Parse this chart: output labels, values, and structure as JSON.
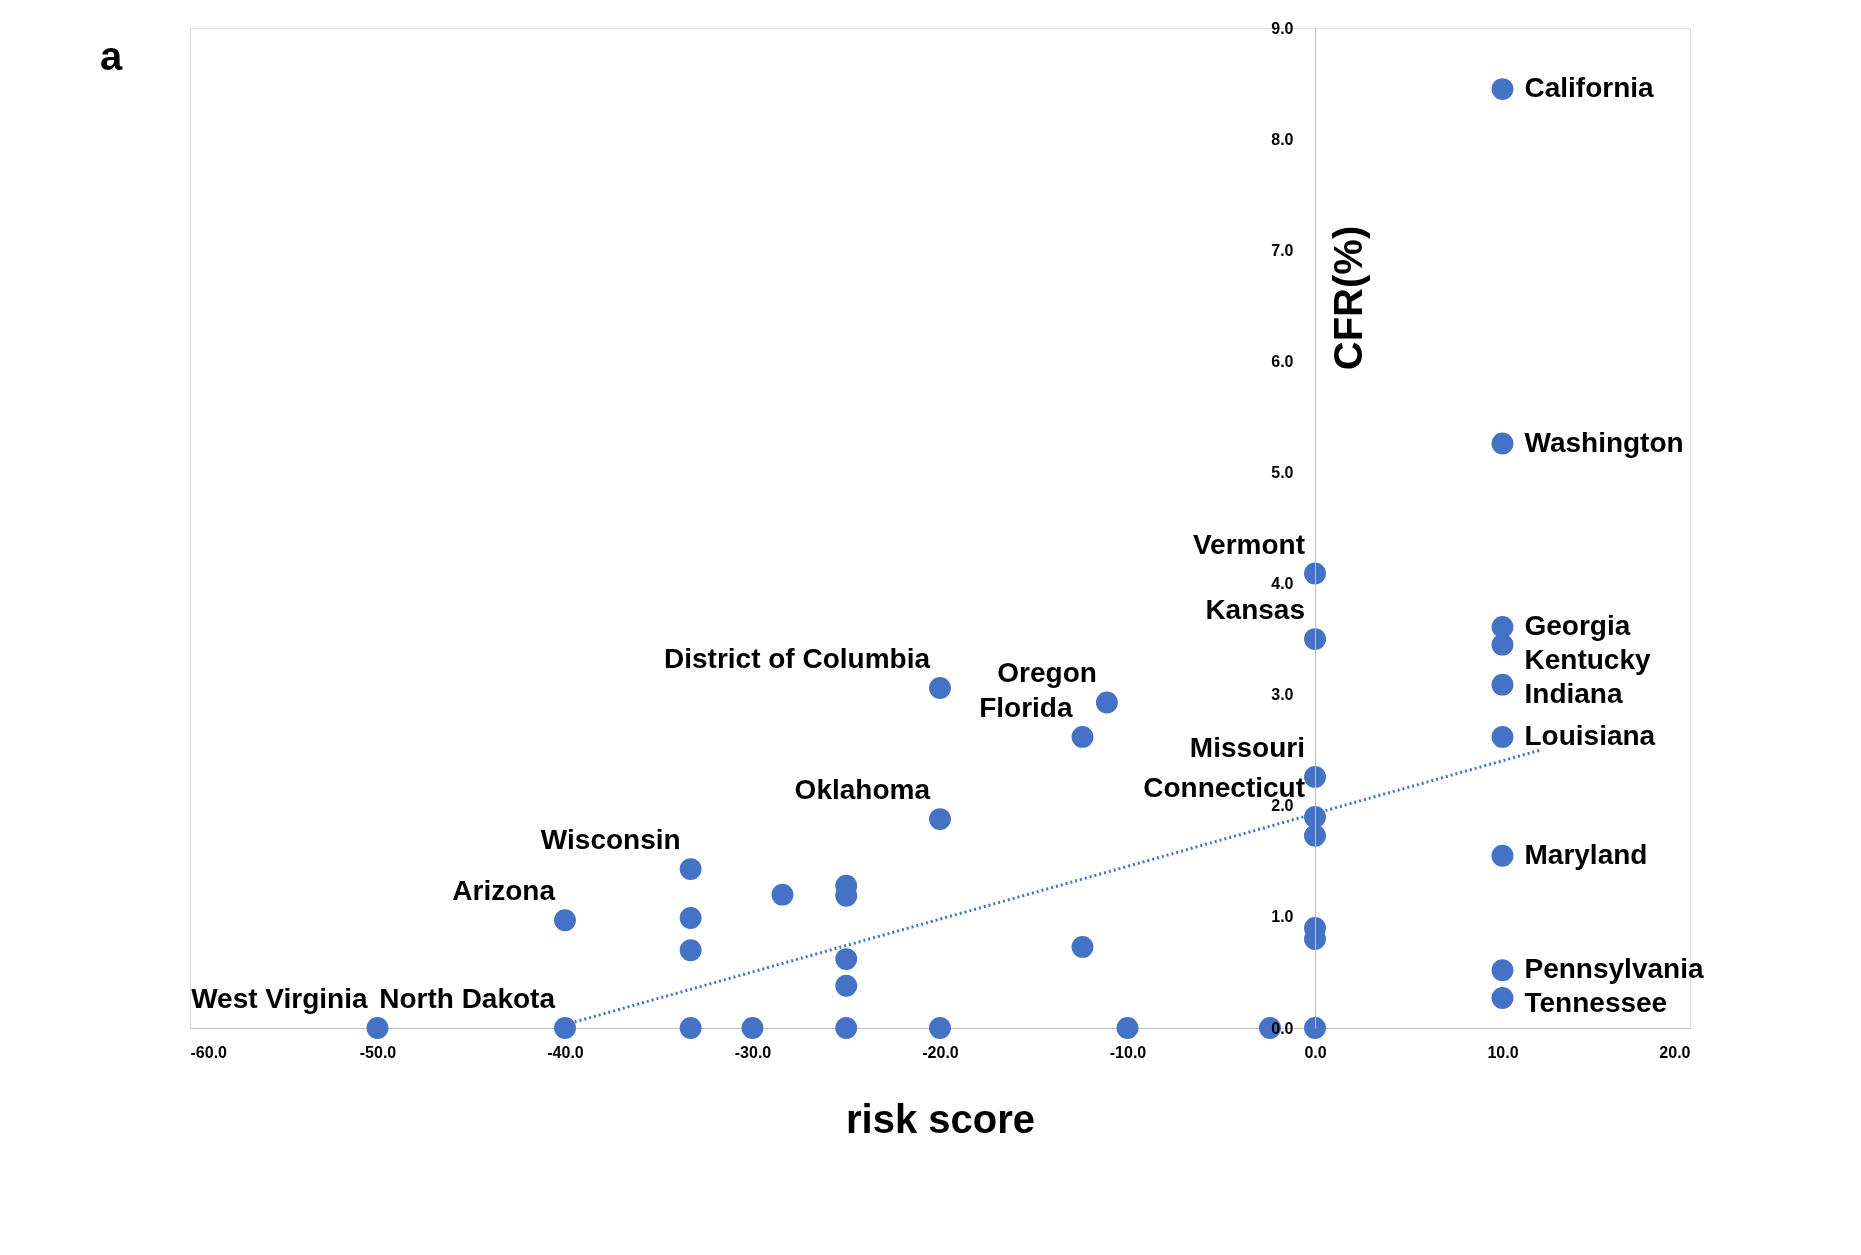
{
  "chart_data": {
    "type": "scatter",
    "xlabel": "risk score",
    "ylabel": "CFR(%)",
    "xlim": [
      -60,
      20
    ],
    "ylim": [
      0,
      9
    ],
    "xticks": [
      {
        "value": -60,
        "label": "-60.0"
      },
      {
        "value": -50,
        "label": "-50.0"
      },
      {
        "value": -40,
        "label": "-40.0"
      },
      {
        "value": -30,
        "label": "-30.0"
      },
      {
        "value": -20,
        "label": "-20.0"
      },
      {
        "value": -10,
        "label": "-10.0"
      },
      {
        "value": 0,
        "label": "0.0"
      },
      {
        "value": 10,
        "label": "10.0"
      },
      {
        "value": 20,
        "label": "20.0"
      }
    ],
    "yticks": [
      {
        "value": 0,
        "label": "0.0"
      },
      {
        "value": 1,
        "label": "1.0"
      },
      {
        "value": 2,
        "label": "2.0"
      },
      {
        "value": 3,
        "label": "3.0"
      },
      {
        "value": 4,
        "label": "4.0"
      },
      {
        "value": 5,
        "label": "5.0"
      },
      {
        "value": 6,
        "label": "6.0"
      },
      {
        "value": 7,
        "label": "7.0"
      },
      {
        "value": 8,
        "label": "8.0"
      },
      {
        "value": 9,
        "label": "9.0"
      }
    ],
    "grid": false,
    "marker": "circle",
    "series": [
      {
        "color": "#4472c4",
        "x": [
          10,
          10,
          0,
          0,
          10,
          10,
          10,
          10,
          10,
          10,
          10,
          -20,
          -11.1,
          -12.4,
          0,
          0,
          0,
          -20,
          -33.3,
          -33.3,
          -33.3,
          -28.4,
          -25,
          -25,
          -25,
          -25,
          -40,
          -12.4,
          0,
          0,
          -50,
          -40,
          -33.3,
          -30,
          -25,
          -20,
          -10,
          -2.4,
          0
        ],
        "values": [
          8.45,
          5.26,
          4.09,
          3.5,
          3.61,
          3.45,
          3.09,
          2.62,
          1.55,
          0.52,
          0.27,
          3.06,
          2.93,
          2.62,
          2.26,
          1.9,
          1.73,
          1.88,
          1.43,
          0.99,
          0.7,
          1.2,
          1.28,
          1.19,
          0.62,
          0.38,
          0.97,
          0.73,
          0.9,
          0.8,
          0,
          0,
          0,
          0,
          0,
          0,
          0,
          0,
          0
        ]
      },
      {
        "type": "line",
        "color": "#4472c4",
        "line_style": "dotted",
        "marker": "none",
        "x": [
          -40,
          12
        ],
        "values": [
          0.03,
          2.5
        ]
      }
    ],
    "annotations": [
      "a",
      {
        "text": "California",
        "x": 10,
        "y": 8.45
      },
      {
        "text": "Washington",
        "x": 10,
        "y": 5.26
      },
      {
        "text": "Vermont",
        "x": 0,
        "y": 4.09
      },
      {
        "text": "Kansas",
        "x": 0,
        "y": 3.5
      },
      {
        "text": "Georgia",
        "x": 10,
        "y": 3.61
      },
      {
        "text": "Kentucky",
        "x": 10,
        "y": 3.45
      },
      {
        "text": "Indiana",
        "x": 10,
        "y": 3.09
      },
      {
        "text": "Louisiana",
        "x": 10,
        "y": 2.62
      },
      {
        "text": "Maryland",
        "x": 10,
        "y": 1.55
      },
      {
        "text": "Pennsylvania",
        "x": 10,
        "y": 0.52
      },
      {
        "text": "Tennessee",
        "x": 10,
        "y": 0.27
      },
      {
        "text": "District of Columbia",
        "x": -20,
        "y": 3.06
      },
      {
        "text": "Oregon",
        "x": -11.1,
        "y": 2.93
      },
      {
        "text": "Florida",
        "x": -12.4,
        "y": 2.62
      },
      {
        "text": "Missouri",
        "x": 0,
        "y": 2.26
      },
      {
        "text": "Connecticut",
        "x": 0,
        "y": 1.9
      },
      {
        "text": "Oklahoma",
        "x": -20,
        "y": 1.88
      },
      {
        "text": "Wisconsin",
        "x": -33.3,
        "y": 1.43
      },
      {
        "text": "Arizona",
        "x": -40,
        "y": 0.97
      },
      {
        "text": "West Virginia",
        "x": -50,
        "y": 0
      },
      {
        "text": "North Dakota",
        "x": -40,
        "y": 0
      }
    ]
  }
}
